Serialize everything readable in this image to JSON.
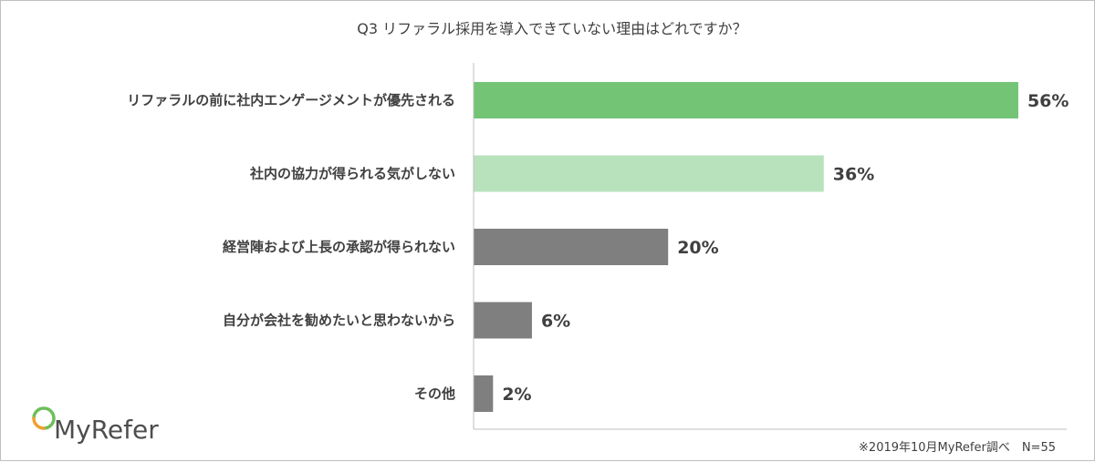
{
  "brand": {
    "name": "MyRefer",
    "icon": "myrefer-logo-ring-icon"
  },
  "note": "※2019年10月MyRefer調べ　N=55",
  "colors": {
    "bar_top": "#74c476",
    "bar_second": "#b8e2bc",
    "bar_rest": "#7f7f7f",
    "axis": "#bfbfbf",
    "text": "#404040",
    "logo_green": "#6cbf5a",
    "logo_orange": "#f0a030"
  },
  "chart_data": {
    "type": "bar",
    "orientation": "horizontal",
    "title": "Q3 リファラル採用を導入できていない理由はどれですか？",
    "categories": [
      "リファラルの前に社内エンゲージメントが優先される",
      "社内の協力が得られる気がしない",
      "経営陣および上長の承認が得られない",
      "自分が会社を勧めたいと思わないから",
      "その他"
    ],
    "values": [
      56,
      36,
      20,
      6,
      2
    ],
    "value_labels": [
      "56%",
      "36%",
      "20%",
      "6%",
      "2%"
    ],
    "unit": "%",
    "xlim": [
      0,
      60
    ],
    "grid": false,
    "legend": "none"
  }
}
